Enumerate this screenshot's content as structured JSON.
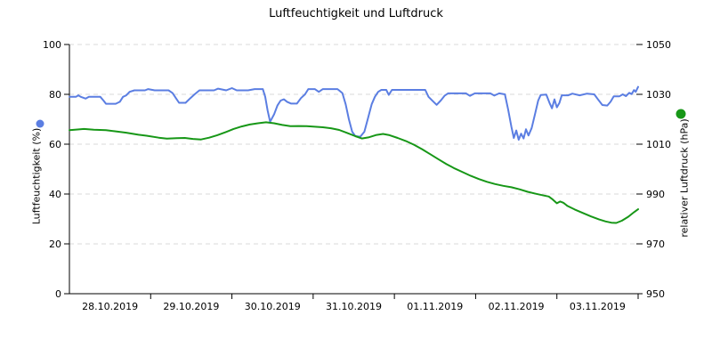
{
  "chart_data": {
    "type": "line",
    "title": "Luftfeuchtigkeit und Luftdruck",
    "x_tick_labels": [
      "28.10.2019",
      "29.10.2019",
      "30.10.2019",
      "31.10.2019",
      "01.11.2019",
      "02.11.2019",
      "03.11.2019"
    ],
    "x_range_days": [
      0,
      7
    ],
    "grid": "horizontal-dashed",
    "grid_color": "#d9d9d9",
    "axis_color": "#000000",
    "legend_position": "axis-dots",
    "left_axis": {
      "label": "Luftfeuchtigkeit (%)",
      "ticks": [
        0,
        20,
        40,
        60,
        80,
        100
      ],
      "range": [
        0,
        100
      ],
      "marker_color": "#5b7ee2"
    },
    "right_axis": {
      "label": "relativer Luftdruck (hPa)",
      "ticks": [
        950,
        970,
        990,
        1010,
        1030,
        1050
      ],
      "range": [
        950,
        1050
      ],
      "marker_color": "#179717"
    },
    "series": [
      {
        "name": "Luftfeuchtigkeit",
        "axis": "left",
        "color": "#5b7ee2",
        "points": [
          [
            0,
            79
          ],
          [
            0.08,
            79
          ],
          [
            0.11,
            79.6
          ],
          [
            0.14,
            79
          ],
          [
            0.2,
            78.3
          ],
          [
            0.24,
            79
          ],
          [
            0.38,
            79
          ],
          [
            0.42,
            77.5
          ],
          [
            0.45,
            76.2
          ],
          [
            0.57,
            76.2
          ],
          [
            0.62,
            77
          ],
          [
            0.66,
            79
          ],
          [
            0.7,
            79.6
          ],
          [
            0.74,
            81
          ],
          [
            0.8,
            81.6
          ],
          [
            0.93,
            81.6
          ],
          [
            0.97,
            82.1
          ],
          [
            1.05,
            81.6
          ],
          [
            1.22,
            81.6
          ],
          [
            1.27,
            80.5
          ],
          [
            1.31,
            78.5
          ],
          [
            1.35,
            76.6
          ],
          [
            1.43,
            76.6
          ],
          [
            1.49,
            78.5
          ],
          [
            1.54,
            80
          ],
          [
            1.6,
            81.6
          ],
          [
            1.78,
            81.6
          ],
          [
            1.83,
            82.3
          ],
          [
            1.93,
            81.6
          ],
          [
            2.0,
            82.5
          ],
          [
            2.06,
            81.6
          ],
          [
            2.2,
            81.6
          ],
          [
            2.28,
            82.1
          ],
          [
            2.38,
            82.1
          ],
          [
            2.41,
            79
          ],
          [
            2.44,
            73.5
          ],
          [
            2.47,
            69
          ],
          [
            2.52,
            72
          ],
          [
            2.56,
            75.5
          ],
          [
            2.6,
            77.5
          ],
          [
            2.64,
            78
          ],
          [
            2.68,
            77
          ],
          [
            2.73,
            76.3
          ],
          [
            2.8,
            76.3
          ],
          [
            2.85,
            78.5
          ],
          [
            2.9,
            80
          ],
          [
            2.94,
            82.1
          ],
          [
            3.02,
            82.1
          ],
          [
            3.07,
            81
          ],
          [
            3.12,
            82.1
          ],
          [
            3.3,
            82.1
          ],
          [
            3.36,
            80.5
          ],
          [
            3.4,
            76
          ],
          [
            3.44,
            70
          ],
          [
            3.48,
            65
          ],
          [
            3.52,
            63.2
          ],
          [
            3.58,
            63
          ],
          [
            3.63,
            65
          ],
          [
            3.68,
            71
          ],
          [
            3.72,
            76
          ],
          [
            3.76,
            79
          ],
          [
            3.8,
            81
          ],
          [
            3.84,
            81.8
          ],
          [
            3.9,
            81.8
          ],
          [
            3.93,
            79.8
          ],
          [
            3.97,
            81.8
          ],
          [
            4.2,
            81.8
          ],
          [
            4.38,
            81.8
          ],
          [
            4.42,
            79
          ],
          [
            4.47,
            77.4
          ],
          [
            4.52,
            75.8
          ],
          [
            4.57,
            77.5
          ],
          [
            4.62,
            79.5
          ],
          [
            4.66,
            80.4
          ],
          [
            4.88,
            80.4
          ],
          [
            4.93,
            79.4
          ],
          [
            4.99,
            80.4
          ],
          [
            5.18,
            80.4
          ],
          [
            5.23,
            79.5
          ],
          [
            5.29,
            80.4
          ],
          [
            5.36,
            80
          ],
          [
            5.4,
            74
          ],
          [
            5.44,
            67
          ],
          [
            5.47,
            62.5
          ],
          [
            5.5,
            65.5
          ],
          [
            5.53,
            61.8
          ],
          [
            5.56,
            64.2
          ],
          [
            5.59,
            62.3
          ],
          [
            5.62,
            66
          ],
          [
            5.65,
            63.5
          ],
          [
            5.69,
            66.5
          ],
          [
            5.73,
            72
          ],
          [
            5.77,
            77.5
          ],
          [
            5.8,
            79.7
          ],
          [
            5.87,
            79.9
          ],
          [
            5.91,
            76.5
          ],
          [
            5.94,
            74.4
          ],
          [
            5.97,
            78
          ],
          [
            6.0,
            74.8
          ],
          [
            6.03,
            76.5
          ],
          [
            6.06,
            79.6
          ],
          [
            6.14,
            79.6
          ],
          [
            6.19,
            80.3
          ],
          [
            6.28,
            79.6
          ],
          [
            6.37,
            80.3
          ],
          [
            6.46,
            80
          ],
          [
            6.51,
            77.8
          ],
          [
            6.56,
            75.7
          ],
          [
            6.62,
            75.5
          ],
          [
            6.66,
            77
          ],
          [
            6.7,
            79.2
          ],
          [
            6.77,
            79.2
          ],
          [
            6.81,
            80
          ],
          [
            6.85,
            79.3
          ],
          [
            6.89,
            80.6
          ],
          [
            6.92,
            80.1
          ],
          [
            6.95,
            81.7
          ],
          [
            6.97,
            81
          ],
          [
            7.0,
            83
          ]
        ]
      },
      {
        "name": "relativer Luftdruck",
        "axis": "right",
        "color": "#179717",
        "points": [
          [
            0,
            1015.6
          ],
          [
            0.1,
            1015.9
          ],
          [
            0.18,
            1016.1
          ],
          [
            0.3,
            1015.8
          ],
          [
            0.45,
            1015.6
          ],
          [
            0.55,
            1015.2
          ],
          [
            0.7,
            1014.6
          ],
          [
            0.85,
            1013.8
          ],
          [
            0.95,
            1013.4
          ],
          [
            1.1,
            1012.6
          ],
          [
            1.2,
            1012.2
          ],
          [
            1.32,
            1012.4
          ],
          [
            1.42,
            1012.5
          ],
          [
            1.52,
            1012.1
          ],
          [
            1.62,
            1011.9
          ],
          [
            1.72,
            1012.6
          ],
          [
            1.82,
            1013.6
          ],
          [
            1.92,
            1014.8
          ],
          [
            2.02,
            1016.1
          ],
          [
            2.12,
            1017.1
          ],
          [
            2.22,
            1017.9
          ],
          [
            2.32,
            1018.4
          ],
          [
            2.42,
            1018.8
          ],
          [
            2.52,
            1018.4
          ],
          [
            2.62,
            1017.7
          ],
          [
            2.72,
            1017.2
          ],
          [
            2.82,
            1017.3
          ],
          [
            2.92,
            1017.2
          ],
          [
            3.02,
            1017.0
          ],
          [
            3.12,
            1016.8
          ],
          [
            3.22,
            1016.4
          ],
          [
            3.32,
            1015.7
          ],
          [
            3.42,
            1014.5
          ],
          [
            3.52,
            1013.2
          ],
          [
            3.6,
            1012.3
          ],
          [
            3.68,
            1012.7
          ],
          [
            3.78,
            1013.7
          ],
          [
            3.86,
            1014.1
          ],
          [
            3.94,
            1013.6
          ],
          [
            4.04,
            1012.5
          ],
          [
            4.14,
            1011.3
          ],
          [
            4.24,
            1009.8
          ],
          [
            4.34,
            1008.0
          ],
          [
            4.44,
            1006.0
          ],
          [
            4.54,
            1004.0
          ],
          [
            4.64,
            1002.0
          ],
          [
            4.74,
            1000.3
          ],
          [
            4.84,
            998.8
          ],
          [
            4.94,
            997.3
          ],
          [
            5.04,
            996.0
          ],
          [
            5.14,
            994.9
          ],
          [
            5.24,
            994.0
          ],
          [
            5.34,
            993.3
          ],
          [
            5.44,
            992.7
          ],
          [
            5.54,
            991.9
          ],
          [
            5.64,
            990.9
          ],
          [
            5.74,
            990.1
          ],
          [
            5.84,
            989.4
          ],
          [
            5.9,
            989.0
          ],
          [
            5.95,
            987.8
          ],
          [
            6.0,
            986.3
          ],
          [
            6.04,
            987.0
          ],
          [
            6.08,
            986.5
          ],
          [
            6.13,
            985.2
          ],
          [
            6.22,
            983.8
          ],
          [
            6.32,
            982.4
          ],
          [
            6.42,
            981.0
          ],
          [
            6.52,
            979.8
          ],
          [
            6.6,
            979.0
          ],
          [
            6.67,
            978.5
          ],
          [
            6.73,
            978.4
          ],
          [
            6.8,
            979.3
          ],
          [
            6.88,
            980.9
          ],
          [
            6.95,
            982.7
          ],
          [
            7.0,
            983.9
          ]
        ]
      }
    ]
  }
}
